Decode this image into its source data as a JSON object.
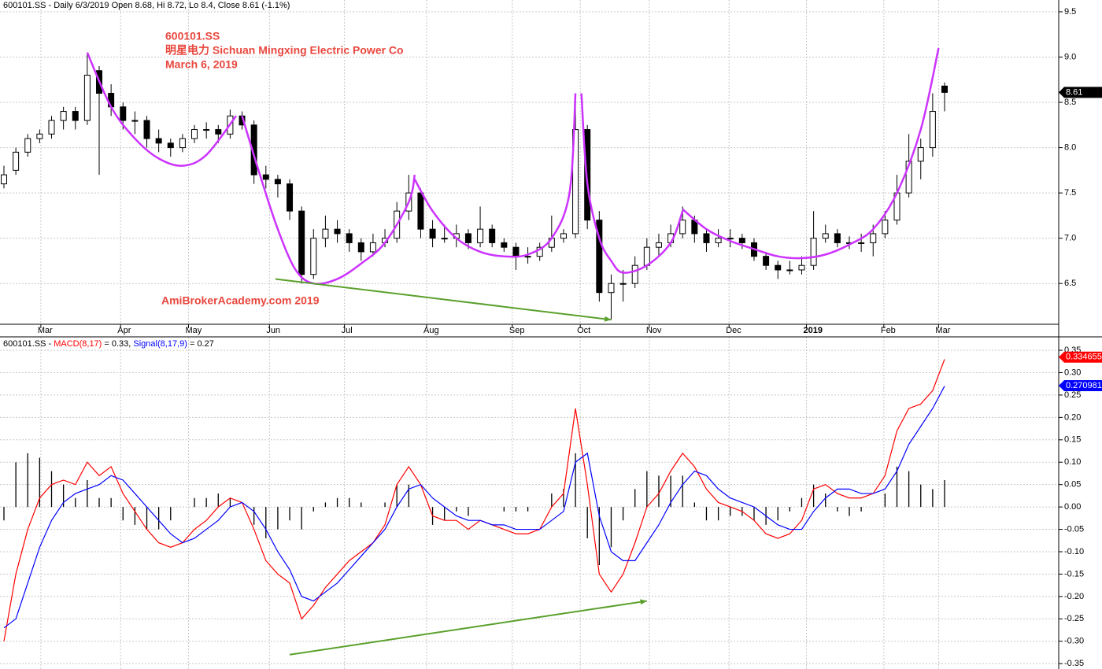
{
  "chart_data": [
    {
      "type": "candlestick",
      "title": "600101.SS - Daily 6/3/2019 Open 8.68, Hi 8.72, Lo 8.4, Close 8.61 (-1.1%)",
      "annotations": [
        "600101.SS",
        "明星电力  Sichuan Mingxing Electric Power Co",
        "March 6, 2019",
        "AmiBrokerAcademy.com   2019"
      ],
      "ohlc": [
        [
          7.6,
          7.8,
          7.55,
          7.7
        ],
        [
          7.75,
          8.0,
          7.7,
          7.95
        ],
        [
          7.95,
          8.15,
          7.9,
          8.1
        ],
        [
          8.1,
          8.2,
          8.05,
          8.15
        ],
        [
          8.15,
          8.35,
          8.1,
          8.3
        ],
        [
          8.3,
          8.45,
          8.2,
          8.4
        ],
        [
          8.4,
          8.45,
          8.2,
          8.3
        ],
        [
          8.3,
          9.05,
          8.25,
          8.8
        ],
        [
          8.85,
          8.9,
          7.7,
          8.6
        ],
        [
          8.6,
          8.7,
          8.35,
          8.45
        ],
        [
          8.45,
          8.5,
          8.2,
          8.3
        ],
        [
          8.3,
          8.4,
          8.15,
          8.3
        ],
        [
          8.3,
          8.35,
          8.0,
          8.1
        ],
        [
          8.1,
          8.2,
          7.95,
          8.05
        ],
        [
          8.05,
          8.1,
          7.9,
          8.0
        ],
        [
          8.0,
          8.15,
          7.95,
          8.1
        ],
        [
          8.1,
          8.25,
          8.05,
          8.2
        ],
        [
          8.2,
          8.28,
          8.1,
          8.2
        ],
        [
          8.2,
          8.25,
          8.05,
          8.15
        ],
        [
          8.15,
          8.42,
          8.1,
          8.35
        ],
        [
          8.35,
          8.4,
          8.2,
          8.25
        ],
        [
          8.25,
          8.3,
          7.6,
          7.7
        ],
        [
          7.7,
          7.8,
          7.55,
          7.65
        ],
        [
          7.65,
          7.7,
          7.45,
          7.6
        ],
        [
          7.6,
          7.65,
          7.2,
          7.3
        ],
        [
          7.3,
          7.35,
          6.5,
          6.6
        ],
        [
          6.6,
          7.1,
          6.55,
          7.0
        ],
        [
          7.0,
          7.25,
          6.9,
          7.1
        ],
        [
          7.1,
          7.2,
          6.95,
          7.05
        ],
        [
          7.05,
          7.1,
          6.85,
          6.95
        ],
        [
          6.95,
          7.0,
          6.75,
          6.85
        ],
        [
          6.85,
          7.05,
          6.8,
          6.95
        ],
        [
          6.95,
          7.1,
          6.9,
          7.0
        ],
        [
          7.0,
          7.4,
          6.95,
          7.3
        ],
        [
          7.3,
          7.7,
          7.2,
          7.5
        ],
        [
          7.5,
          7.55,
          7.0,
          7.1
        ],
        [
          7.1,
          7.2,
          6.9,
          7.0
        ],
        [
          7.0,
          7.15,
          6.95,
          7.0
        ],
        [
          7.0,
          7.15,
          6.9,
          7.05
        ],
        [
          7.05,
          7.1,
          6.88,
          6.95
        ],
        [
          6.95,
          7.35,
          6.9,
          7.1
        ],
        [
          7.1,
          7.15,
          6.9,
          6.95
        ],
        [
          6.95,
          7.0,
          6.85,
          6.9
        ],
        [
          6.9,
          6.95,
          6.65,
          6.8
        ],
        [
          6.8,
          6.9,
          6.72,
          6.8
        ],
        [
          6.8,
          6.95,
          6.75,
          6.9
        ],
        [
          6.9,
          7.25,
          6.85,
          7.0
        ],
        [
          7.0,
          7.1,
          6.95,
          7.05
        ],
        [
          7.05,
          8.6,
          7.0,
          8.2
        ],
        [
          8.2,
          8.25,
          7.1,
          7.2
        ],
        [
          7.2,
          7.3,
          6.3,
          6.4
        ],
        [
          6.4,
          6.6,
          6.1,
          6.5
        ],
        [
          6.5,
          6.65,
          6.3,
          6.5
        ],
        [
          6.5,
          6.8,
          6.45,
          6.7
        ],
        [
          6.7,
          7.0,
          6.65,
          6.9
        ],
        [
          6.9,
          7.05,
          6.8,
          6.95
        ],
        [
          6.95,
          7.15,
          6.9,
          7.05
        ],
        [
          7.05,
          7.35,
          7.0,
          7.2
        ],
        [
          7.2,
          7.25,
          6.95,
          7.05
        ],
        [
          7.05,
          7.1,
          6.85,
          6.95
        ],
        [
          6.95,
          7.1,
          6.9,
          7.0
        ],
        [
          7.0,
          7.1,
          6.9,
          7.0
        ],
        [
          7.0,
          7.05,
          6.88,
          6.95
        ],
        [
          6.95,
          7.0,
          6.75,
          6.8
        ],
        [
          6.8,
          6.85,
          6.65,
          6.7
        ],
        [
          6.7,
          6.75,
          6.55,
          6.65
        ],
        [
          6.65,
          6.75,
          6.6,
          6.65
        ],
        [
          6.65,
          6.8,
          6.6,
          6.7
        ],
        [
          6.7,
          7.3,
          6.65,
          7.0
        ],
        [
          7.0,
          7.15,
          6.95,
          7.05
        ],
        [
          7.05,
          7.1,
          6.9,
          6.95
        ],
        [
          6.95,
          7.02,
          6.88,
          6.95
        ],
        [
          6.95,
          7.05,
          6.85,
          6.95
        ],
        [
          6.95,
          7.15,
          6.8,
          7.05
        ],
        [
          7.05,
          7.3,
          7.0,
          7.2
        ],
        [
          7.2,
          7.7,
          7.15,
          7.5
        ],
        [
          7.5,
          8.15,
          7.45,
          7.85
        ],
        [
          7.85,
          8.1,
          7.65,
          8.0
        ],
        [
          8.0,
          8.6,
          7.9,
          8.4
        ],
        [
          8.68,
          8.72,
          8.4,
          8.61
        ]
      ],
      "last_value": 8.61,
      "x_ticks": [
        {
          "value": 3.1,
          "label": "Mar"
        },
        {
          "value": 9.8,
          "label": "Apr"
        },
        {
          "value": 15.5,
          "label": "May"
        },
        {
          "value": 22.3,
          "label": "Jun"
        },
        {
          "value": 28.6,
          "label": "Jul"
        },
        {
          "value": 35.5,
          "label": "Aug"
        },
        {
          "value": 42.7,
          "label": "Sep"
        },
        {
          "value": 48.4,
          "label": "Oct"
        },
        {
          "value": 54.2,
          "label": "Nov"
        },
        {
          "value": 60.9,
          "label": "Dec"
        },
        {
          "value": 67.4,
          "label": "2019"
        },
        {
          "value": 73.9,
          "label": "Feb"
        },
        {
          "value": 78.5,
          "label": "Mar"
        }
      ],
      "ylim": [
        6.05,
        9.63
      ],
      "yticks": [
        6.5,
        {
          "value": 7,
          "label": "7.0"
        },
        7.5,
        {
          "value": 8,
          "label": "8.0"
        },
        8.5,
        {
          "value": 9,
          "label": "9.0"
        },
        9.5
      ],
      "grid": true,
      "curves": [
        {
          "color": "#cc33ff",
          "points": [
            [
              7,
              9.05
            ],
            [
              9,
              8.45
            ],
            [
              11,
              8.1
            ],
            [
              13,
              7.88
            ],
            [
              15,
              7.8
            ],
            [
              17,
              7.92
            ],
            [
              19.5,
              8.35
            ]
          ]
        },
        {
          "color": "#cc33ff",
          "points": [
            [
              20,
              8.35
            ],
            [
              21.5,
              7.7
            ],
            [
              23,
              7.1
            ],
            [
              24.5,
              6.65
            ],
            [
              26,
              6.5
            ],
            [
              28,
              6.55
            ],
            [
              30,
              6.72
            ],
            [
              32,
              6.95
            ],
            [
              34,
              7.4
            ],
            [
              34.5,
              7.7
            ]
          ]
        },
        {
          "color": "#cc33ff",
          "points": [
            [
              34.5,
              7.65
            ],
            [
              36,
              7.3
            ],
            [
              38,
              7.0
            ],
            [
              40,
              6.85
            ],
            [
              42,
              6.8
            ],
            [
              44,
              6.82
            ],
            [
              46,
              7.0
            ],
            [
              47.5,
              7.5
            ],
            [
              48,
              8.6
            ]
          ]
        },
        {
          "color": "#cc33ff",
          "points": [
            [
              48.5,
              8.6
            ],
            [
              49,
              7.6
            ],
            [
              50,
              7.0
            ],
            [
              51,
              6.75
            ],
            [
              52,
              6.62
            ],
            [
              54,
              6.7
            ],
            [
              56,
              6.95
            ],
            [
              57,
              7.3
            ]
          ]
        },
        {
          "color": "#cc33ff",
          "points": [
            [
              57,
              7.32
            ],
            [
              59,
              7.1
            ],
            [
              61,
              6.97
            ],
            [
              63,
              6.88
            ],
            [
              65,
              6.8
            ],
            [
              67,
              6.78
            ],
            [
              69,
              6.82
            ],
            [
              71,
              6.93
            ],
            [
              73,
              7.1
            ],
            [
              75,
              7.5
            ],
            [
              77,
              8.2
            ],
            [
              78.5,
              9.1
            ]
          ]
        }
      ],
      "arrow": {
        "color": "#5aa02c",
        "points": [
          [
            22.8,
            6.55
          ],
          [
            51,
            6.1
          ]
        ]
      }
    },
    {
      "type": "macd",
      "title": [
        "600101.SS - ",
        "MACD(8,17)",
        " = 0.33, ",
        "Signal(8,17,9)",
        " = 0.27"
      ],
      "ylim": [
        -0.362,
        0.38
      ],
      "yticks": [
        0.35,
        {
          "value": 0.3,
          "label": "0.30"
        },
        0.25,
        {
          "value": 0.2,
          "label": "0.20"
        },
        0.15,
        {
          "value": 0.1,
          "label": "0.10"
        },
        0.05,
        {
          "value": 0,
          "label": "0.00"
        },
        -0.05,
        {
          "value": -0.1,
          "label": "-0.10"
        },
        -0.15,
        {
          "value": -0.2,
          "label": "-0.20"
        },
        -0.25,
        {
          "value": -0.3,
          "label": "-0.30"
        },
        -0.35
      ],
      "grid": true,
      "series": [
        {
          "name": "MACD",
          "color": "#ff0000",
          "last_value": 0.334655,
          "values": [
            -0.3,
            -0.15,
            -0.05,
            0.02,
            0.05,
            0.06,
            0.05,
            0.1,
            0.07,
            0.09,
            0.03,
            -0.01,
            -0.05,
            -0.08,
            -0.09,
            -0.08,
            -0.05,
            -0.03,
            0.0,
            0.02,
            0.01,
            -0.05,
            -0.12,
            -0.15,
            -0.17,
            -0.25,
            -0.22,
            -0.18,
            -0.15,
            -0.12,
            -0.1,
            -0.08,
            -0.04,
            0.05,
            0.09,
            0.05,
            -0.02,
            -0.03,
            -0.03,
            -0.05,
            -0.03,
            -0.04,
            -0.05,
            -0.06,
            -0.06,
            -0.05,
            0.0,
            0.03,
            0.22,
            0.05,
            -0.15,
            -0.19,
            -0.15,
            -0.08,
            0.0,
            0.03,
            0.08,
            0.12,
            0.09,
            0.04,
            0.01,
            0.0,
            -0.01,
            -0.03,
            -0.06,
            -0.07,
            -0.06,
            -0.03,
            0.04,
            0.05,
            0.03,
            0.02,
            0.02,
            0.03,
            0.07,
            0.17,
            0.22,
            0.23,
            0.26,
            0.33
          ]
        },
        {
          "name": "Signal",
          "color": "#0000ff",
          "last_value": 0.270981,
          "values": [
            -0.27,
            -0.25,
            -0.17,
            -0.09,
            -0.03,
            0.01,
            0.03,
            0.04,
            0.05,
            0.07,
            0.06,
            0.03,
            0.0,
            -0.03,
            -0.06,
            -0.08,
            -0.07,
            -0.05,
            -0.03,
            0.0,
            0.01,
            -0.01,
            -0.05,
            -0.1,
            -0.14,
            -0.2,
            -0.21,
            -0.19,
            -0.17,
            -0.14,
            -0.11,
            -0.08,
            -0.05,
            0.0,
            0.04,
            0.05,
            0.02,
            0.0,
            -0.02,
            -0.03,
            -0.03,
            -0.04,
            -0.04,
            -0.05,
            -0.05,
            -0.05,
            -0.03,
            -0.01,
            0.1,
            0.12,
            -0.02,
            -0.1,
            -0.12,
            -0.12,
            -0.08,
            -0.04,
            0.01,
            0.05,
            0.08,
            0.07,
            0.04,
            0.02,
            0.01,
            0.0,
            -0.02,
            -0.04,
            -0.05,
            -0.05,
            -0.01,
            0.02,
            0.04,
            0.04,
            0.03,
            0.03,
            0.04,
            0.08,
            0.14,
            0.18,
            0.22,
            0.27
          ]
        }
      ],
      "histogram": [
        -0.03,
        0.1,
        0.12,
        0.11,
        0.08,
        0.05,
        0.02,
        0.06,
        0.02,
        0.02,
        -0.03,
        -0.04,
        -0.05,
        -0.05,
        -0.03,
        0.0,
        0.02,
        0.02,
        0.03,
        0.02,
        0.0,
        -0.04,
        -0.07,
        -0.05,
        -0.03,
        -0.05,
        -0.01,
        0.01,
        0.02,
        0.02,
        0.01,
        0.0,
        0.01,
        0.05,
        0.05,
        0.0,
        -0.04,
        -0.03,
        -0.01,
        -0.02,
        0.0,
        0.0,
        -0.01,
        -0.01,
        -0.01,
        0.0,
        0.03,
        0.04,
        0.12,
        -0.07,
        -0.13,
        -0.09,
        -0.03,
        0.04,
        0.08,
        0.07,
        0.07,
        0.07,
        0.01,
        -0.03,
        -0.03,
        -0.02,
        -0.02,
        -0.03,
        -0.04,
        -0.03,
        -0.01,
        0.02,
        0.05,
        0.03,
        -0.01,
        -0.02,
        -0.01,
        0.0,
        0.03,
        0.09,
        0.08,
        0.05,
        0.04,
        0.06
      ],
      "arrow": {
        "color": "#5aa02c",
        "points": [
          [
            24,
            -0.33
          ],
          [
            54,
            -0.21
          ]
        ]
      }
    }
  ]
}
